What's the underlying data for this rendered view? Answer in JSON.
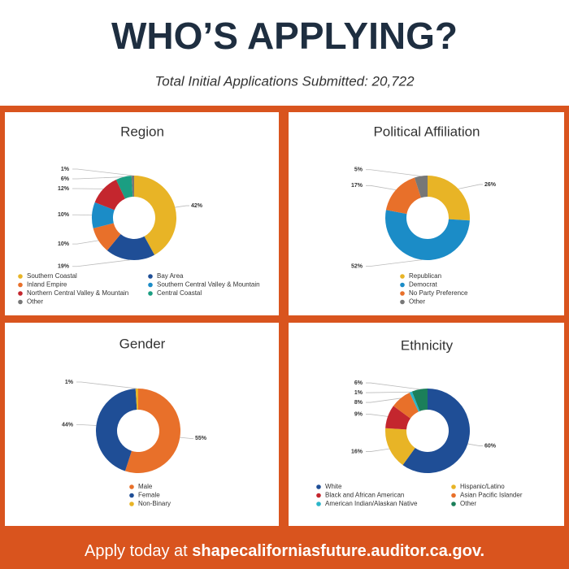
{
  "header": {
    "title": "WHO’S APPLYING?",
    "subtitle": "Total Initial Applications Submitted: 20,722"
  },
  "footer": {
    "text": "Apply today at",
    "link": "shapecaliforniasfuture.auditor.ca.gov."
  },
  "chart_data": [
    {
      "type": "donut",
      "title": "Region",
      "categories": [
        "Southern Coastal",
        "Bay Area",
        "Inland Empire",
        "Southern Central Valley & Mountain",
        "Northern Central Valley & Mountain",
        "Central Coastal",
        "Other"
      ],
      "values": [
        42,
        19,
        10,
        10,
        12,
        6,
        1
      ],
      "value_labels": [
        "42%",
        "19%",
        "10%",
        "10%",
        "12%",
        "6%",
        "1%"
      ],
      "colors": [
        "#e8b426",
        "#1f4e96",
        "#e8702a",
        "#1b8cc7",
        "#c4262e",
        "#1b9e82",
        "#777777"
      ]
    },
    {
      "type": "donut",
      "title": "Political Affiliation",
      "categories": [
        "Republican",
        "Democrat",
        "No Party Preference",
        "Other"
      ],
      "values": [
        26,
        52,
        17,
        5
      ],
      "value_labels": [
        "26%",
        "52%",
        "17%",
        "5%"
      ],
      "colors": [
        "#e8b426",
        "#1b8cc7",
        "#e8702a",
        "#777777"
      ]
    },
    {
      "type": "donut",
      "title": "Gender",
      "categories": [
        "Male",
        "Female",
        "Non-Binary"
      ],
      "values": [
        55,
        44,
        1
      ],
      "value_labels": [
        "55%",
        "44%",
        "1%"
      ],
      "colors": [
        "#e8702a",
        "#1f4e96",
        "#e8b426"
      ]
    },
    {
      "type": "donut",
      "title": "Ethnicity",
      "categories": [
        "White",
        "Hispanic/Latino",
        "Black and African American",
        "Asian Pacific Islander",
        "American Indian/Alaskan Native",
        "Other"
      ],
      "values": [
        60,
        16,
        9,
        8,
        1,
        6
      ],
      "value_labels": [
        "60%",
        "16%",
        "9%",
        "8%",
        "1%",
        "6%"
      ],
      "colors": [
        "#1f4e96",
        "#e8b426",
        "#c4262e",
        "#e8702a",
        "#2bb5c9",
        "#1b7f5a"
      ]
    }
  ]
}
